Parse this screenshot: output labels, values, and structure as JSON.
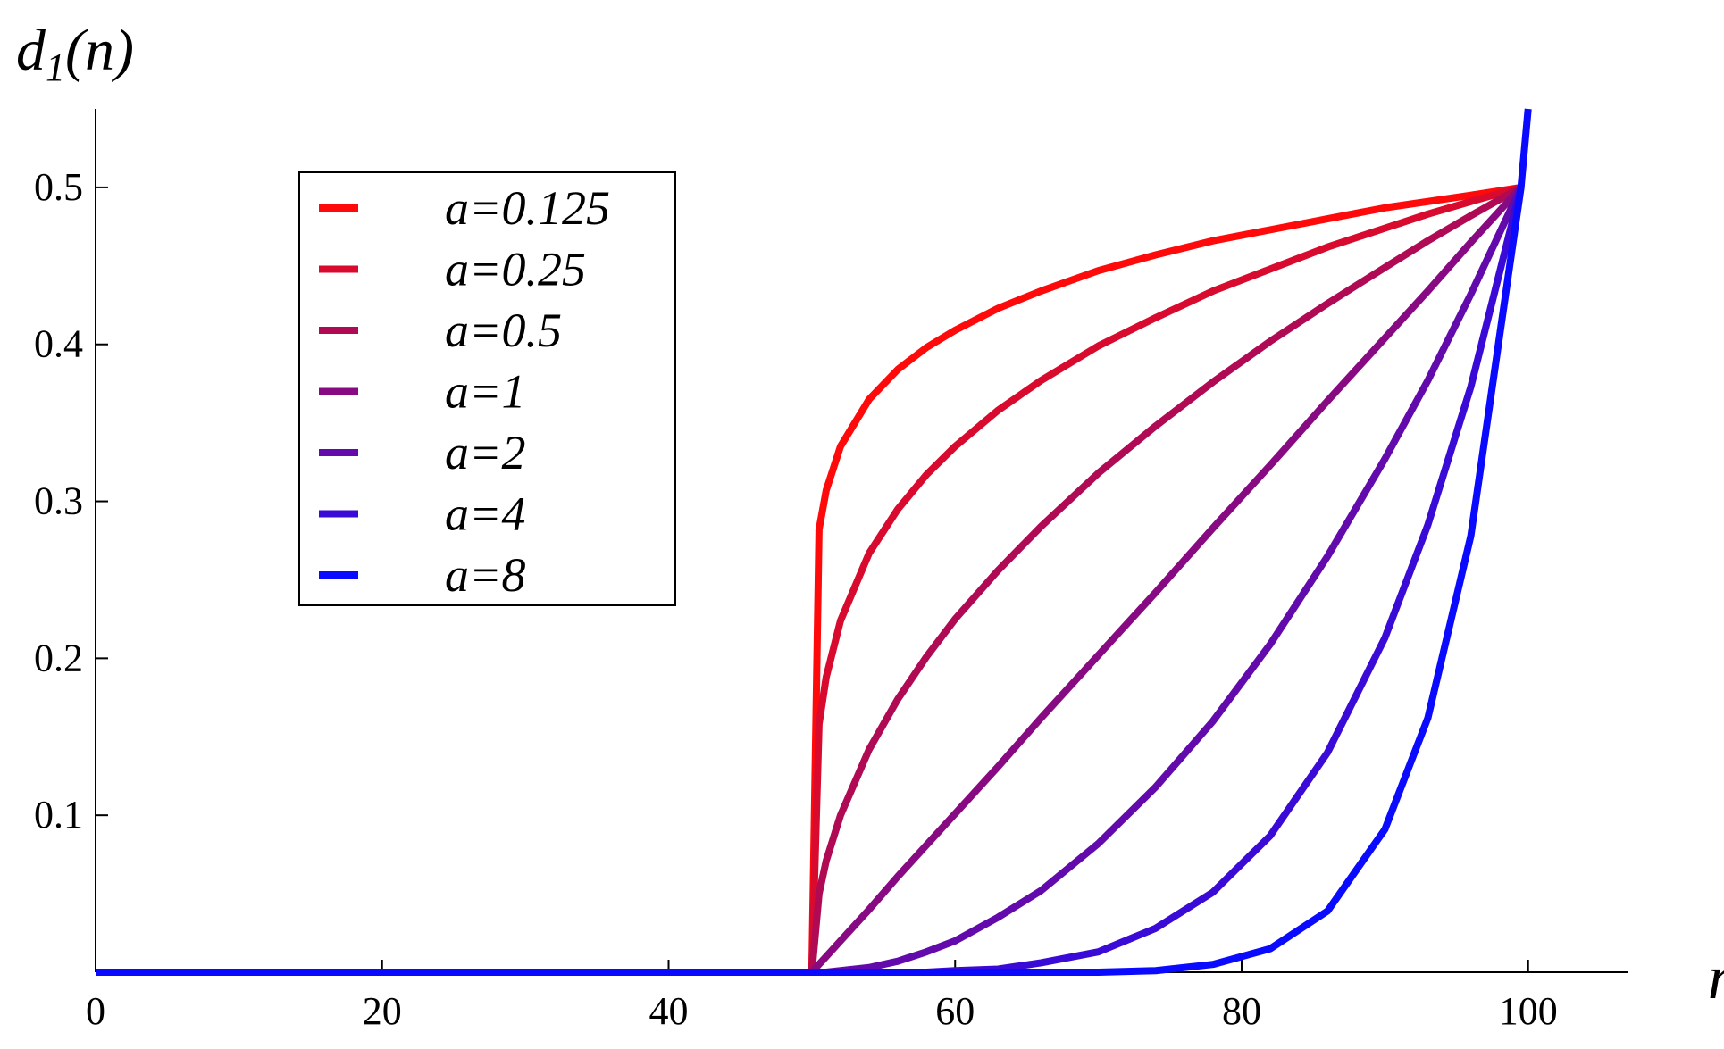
{
  "chart_data": {
    "type": "line",
    "ylabel": [
      "d",
      "1",
      "(n)"
    ],
    "xlabel": "n",
    "x": [
      0,
      10,
      20,
      30,
      40,
      50,
      50.5,
      51,
      52,
      54,
      56,
      58,
      60,
      63,
      66,
      70,
      74,
      78,
      82,
      86,
      90,
      93,
      96,
      99.5,
      100
    ],
    "series": [
      {
        "name": "a=0.125",
        "color": "#ff0a0a",
        "values": [
          0,
          0,
          0,
          0,
          0,
          0,
          0.282,
          0.307,
          0.335,
          0.365,
          0.384,
          0.398,
          0.409,
          0.423,
          0.434,
          0.447,
          0.457,
          0.466,
          0.473,
          0.48,
          0.487,
          0.491,
          0.495,
          0.5,
          null
        ]
      },
      {
        "name": "a=0.25",
        "color": "#d80a2e",
        "values": [
          0,
          0,
          0,
          0,
          0,
          0,
          0.158,
          0.188,
          0.224,
          0.267,
          0.295,
          0.317,
          0.335,
          0.358,
          0.377,
          0.399,
          0.417,
          0.434,
          0.448,
          0.462,
          0.474,
          0.483,
          0.491,
          0.5,
          null
        ]
      },
      {
        "name": "a=0.5",
        "color": "#b00a55",
        "values": [
          0,
          0,
          0,
          0,
          0,
          0,
          0.05,
          0.071,
          0.1,
          0.142,
          0.174,
          0.201,
          0.225,
          0.256,
          0.284,
          0.318,
          0.348,
          0.376,
          0.402,
          0.426,
          0.449,
          0.466,
          0.482,
          0.5,
          null
        ]
      },
      {
        "name": "a=1",
        "color": "#880a82",
        "values": [
          0,
          0,
          0,
          0,
          0,
          0,
          0.005,
          0.01,
          0.02,
          0.04,
          0.061,
          0.081,
          0.101,
          0.131,
          0.162,
          0.202,
          0.242,
          0.283,
          0.323,
          0.364,
          0.404,
          0.434,
          0.465,
          0.5,
          null
        ]
      },
      {
        "name": "a=2",
        "color": "#620aac",
        "values": [
          0,
          0,
          0,
          0,
          0,
          0,
          0,
          0,
          0.001,
          0.003,
          0.007,
          0.013,
          0.02,
          0.035,
          0.052,
          0.082,
          0.118,
          0.16,
          0.209,
          0.265,
          0.327,
          0.377,
          0.432,
          0.5,
          null
        ]
      },
      {
        "name": "a=4",
        "color": "#3a0ad6",
        "values": [
          0,
          0,
          0,
          0,
          0,
          0,
          0,
          0,
          0,
          0,
          0,
          0,
          0.001,
          0.002,
          0.006,
          0.013,
          0.028,
          0.051,
          0.087,
          0.14,
          0.213,
          0.285,
          0.373,
          0.5,
          null
        ]
      },
      {
        "name": "a=8",
        "color": "#0a0aff",
        "values": [
          0,
          0,
          0,
          0,
          0,
          0,
          0,
          0,
          0,
          0,
          0,
          0,
          0,
          0,
          0,
          0,
          0.001,
          0.005,
          0.015,
          0.039,
          0.091,
          0.162,
          0.278,
          0.5,
          0.55
        ]
      }
    ],
    "xlim": [
      0,
      107
    ],
    "ylim": [
      0,
      0.55
    ],
    "xticks": [
      0,
      20,
      40,
      60,
      80,
      100
    ],
    "yticks": [
      0.1,
      0.2,
      0.3,
      0.4,
      0.5
    ],
    "legend": "upper left"
  }
}
